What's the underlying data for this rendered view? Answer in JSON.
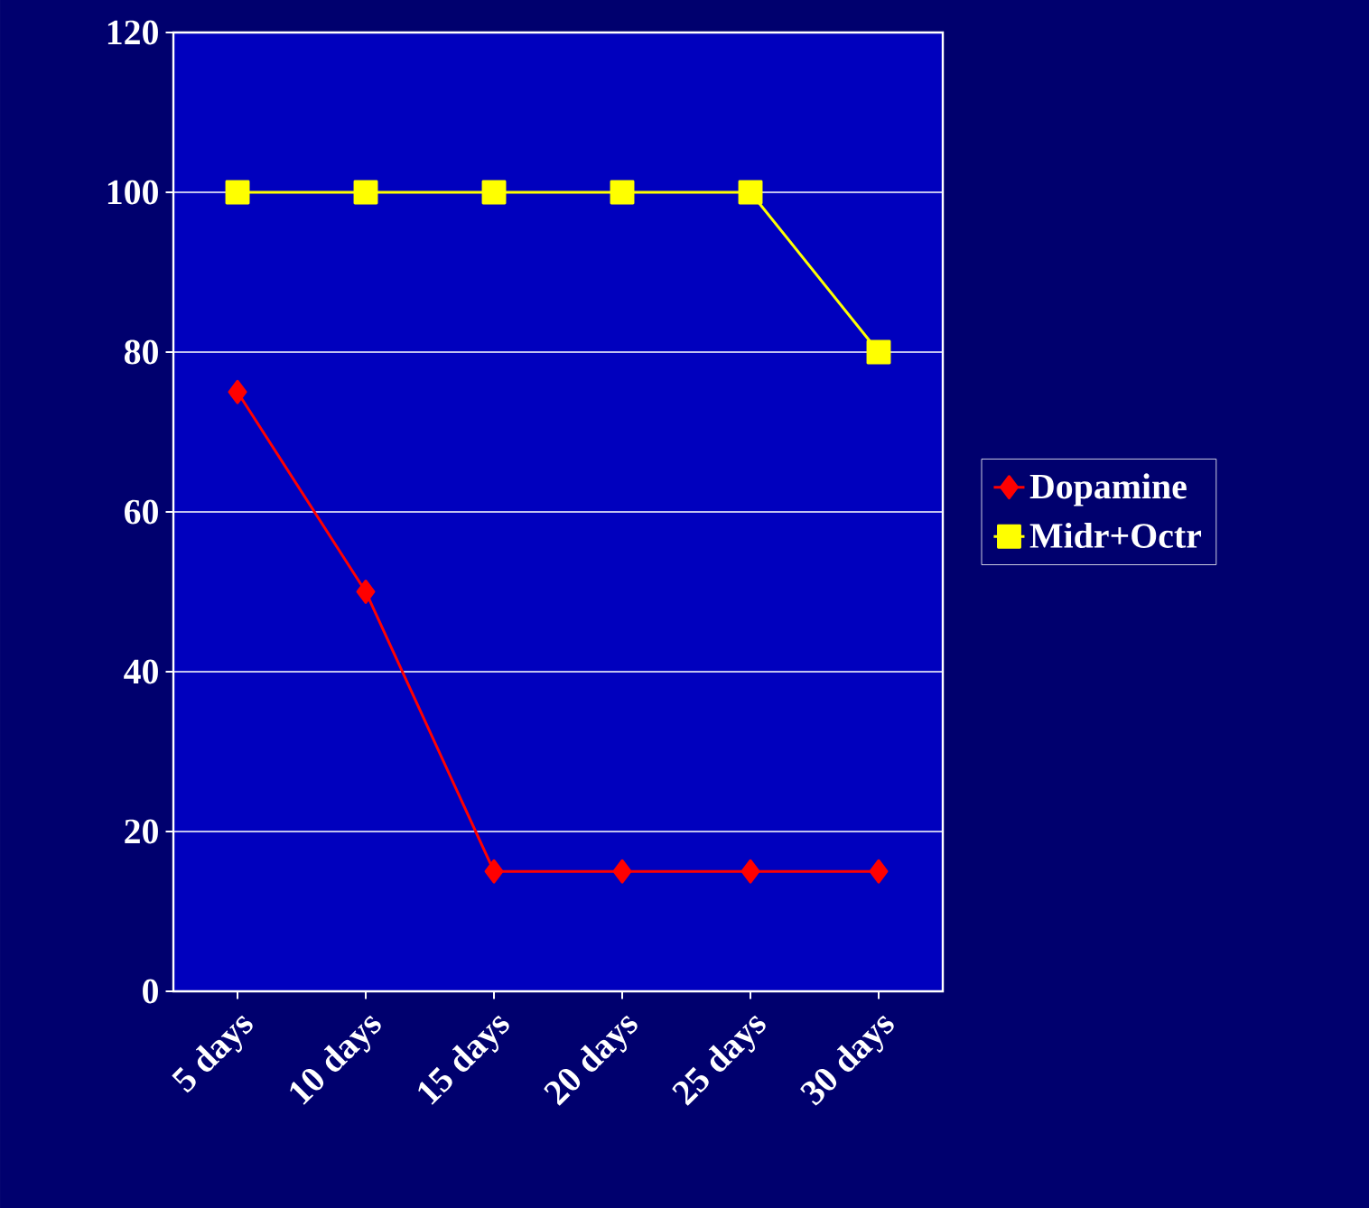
{
  "chart_data": {
    "type": "line",
    "categories": [
      "5 days",
      "10 days",
      "15 days",
      "20 days",
      "25 days",
      "30 days"
    ],
    "series": [
      {
        "name": "Dopamine",
        "color": "#ff0000",
        "marker": "diamond",
        "values": [
          75,
          50,
          15,
          15,
          15,
          15
        ]
      },
      {
        "name": "Midr+Octr",
        "color": "#ffff00",
        "marker": "square",
        "values": [
          100,
          100,
          100,
          100,
          100,
          80
        ]
      }
    ],
    "ylim": [
      0,
      120
    ],
    "yticks": [
      0,
      20,
      40,
      60,
      80,
      100,
      120
    ],
    "grid": "y",
    "legend": "right"
  }
}
